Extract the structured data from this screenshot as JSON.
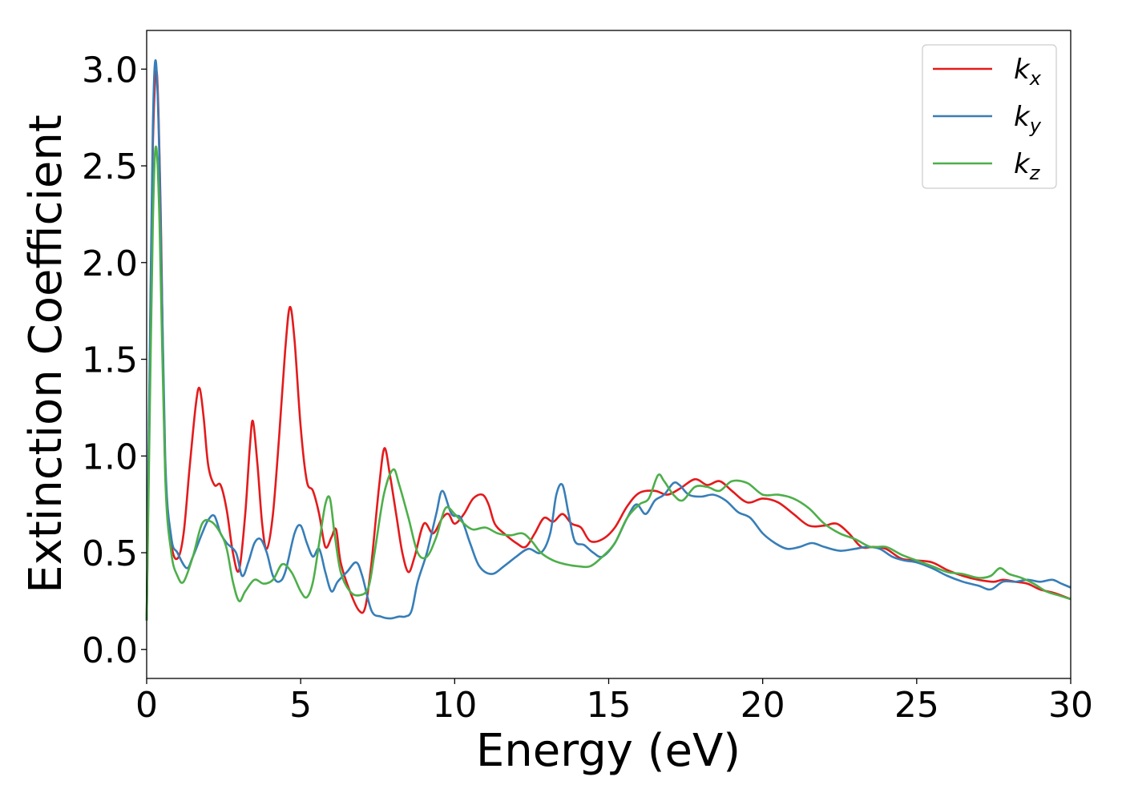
{
  "chart_data": {
    "type": "line",
    "title": "",
    "xlabel": "Energy (eV)",
    "ylabel": "Extinction Coefficient",
    "xlim": [
      0,
      30
    ],
    "ylim": [
      -0.15,
      3.2
    ],
    "xticks": [
      0,
      5,
      10,
      15,
      20,
      25,
      30
    ],
    "xtick_labels": [
      "0",
      "5",
      "10",
      "15",
      "20",
      "25",
      "30"
    ],
    "yticks": [
      0.0,
      0.5,
      1.0,
      1.5,
      2.0,
      2.5,
      3.0
    ],
    "ytick_labels": [
      "0.0",
      "0.5",
      "1.0",
      "1.5",
      "2.0",
      "2.5",
      "3.0"
    ],
    "grid": false,
    "legend_position": "top-right",
    "series": [
      {
        "name": "k_x",
        "label_main": "k",
        "label_sub": "x",
        "color": "#e41a1c",
        "points": [
          [
            0,
            0.15
          ],
          [
            0.1,
            1.4
          ],
          [
            0.2,
            2.6
          ],
          [
            0.33,
            2.98
          ],
          [
            0.45,
            2.3
          ],
          [
            0.6,
            0.95
          ],
          [
            0.8,
            0.55
          ],
          [
            1.0,
            0.47
          ],
          [
            1.2,
            0.6
          ],
          [
            1.4,
            0.95
          ],
          [
            1.6,
            1.27
          ],
          [
            1.72,
            1.35
          ],
          [
            1.85,
            1.2
          ],
          [
            2.0,
            0.95
          ],
          [
            2.2,
            0.85
          ],
          [
            2.4,
            0.85
          ],
          [
            2.6,
            0.72
          ],
          [
            2.8,
            0.5
          ],
          [
            3.0,
            0.41
          ],
          [
            3.2,
            0.7
          ],
          [
            3.35,
            1.05
          ],
          [
            3.45,
            1.18
          ],
          [
            3.6,
            0.95
          ],
          [
            3.75,
            0.65
          ],
          [
            3.9,
            0.52
          ],
          [
            4.1,
            0.7
          ],
          [
            4.3,
            1.1
          ],
          [
            4.5,
            1.55
          ],
          [
            4.65,
            1.77
          ],
          [
            4.8,
            1.6
          ],
          [
            5.0,
            1.15
          ],
          [
            5.2,
            0.87
          ],
          [
            5.4,
            0.82
          ],
          [
            5.6,
            0.7
          ],
          [
            5.8,
            0.53
          ],
          [
            6.0,
            0.58
          ],
          [
            6.15,
            0.62
          ],
          [
            6.3,
            0.45
          ],
          [
            6.6,
            0.3
          ],
          [
            6.9,
            0.2
          ],
          [
            7.1,
            0.22
          ],
          [
            7.3,
            0.45
          ],
          [
            7.55,
            0.85
          ],
          [
            7.72,
            1.04
          ],
          [
            7.9,
            0.9
          ],
          [
            8.1,
            0.7
          ],
          [
            8.3,
            0.5
          ],
          [
            8.5,
            0.4
          ],
          [
            8.7,
            0.48
          ],
          [
            9.0,
            0.65
          ],
          [
            9.3,
            0.6
          ],
          [
            9.6,
            0.68
          ],
          [
            9.8,
            0.7
          ],
          [
            10.0,
            0.65
          ],
          [
            10.3,
            0.7
          ],
          [
            10.6,
            0.78
          ],
          [
            10.9,
            0.8
          ],
          [
            11.1,
            0.75
          ],
          [
            11.3,
            0.65
          ],
          [
            11.6,
            0.6
          ],
          [
            12.0,
            0.55
          ],
          [
            12.3,
            0.53
          ],
          [
            12.6,
            0.6
          ],
          [
            12.9,
            0.68
          ],
          [
            13.2,
            0.66
          ],
          [
            13.5,
            0.7
          ],
          [
            13.8,
            0.65
          ],
          [
            14.1,
            0.63
          ],
          [
            14.4,
            0.56
          ],
          [
            14.8,
            0.57
          ],
          [
            15.2,
            0.63
          ],
          [
            15.6,
            0.74
          ],
          [
            16.0,
            0.81
          ],
          [
            16.5,
            0.82
          ],
          [
            16.9,
            0.8
          ],
          [
            17.3,
            0.83
          ],
          [
            17.8,
            0.88
          ],
          [
            18.2,
            0.85
          ],
          [
            18.6,
            0.87
          ],
          [
            19.0,
            0.82
          ],
          [
            19.5,
            0.76
          ],
          [
            20.0,
            0.78
          ],
          [
            20.5,
            0.76
          ],
          [
            21.0,
            0.7
          ],
          [
            21.5,
            0.64
          ],
          [
            22.0,
            0.64
          ],
          [
            22.4,
            0.65
          ],
          [
            22.8,
            0.6
          ],
          [
            23.2,
            0.53
          ],
          [
            23.6,
            0.53
          ],
          [
            24.0,
            0.52
          ],
          [
            24.5,
            0.47
          ],
          [
            25.0,
            0.46
          ],
          [
            25.5,
            0.45
          ],
          [
            26.0,
            0.41
          ],
          [
            26.5,
            0.38
          ],
          [
            27.0,
            0.36
          ],
          [
            27.5,
            0.35
          ],
          [
            27.8,
            0.36
          ],
          [
            28.2,
            0.35
          ],
          [
            28.6,
            0.34
          ],
          [
            29.0,
            0.31
          ],
          [
            29.5,
            0.29
          ],
          [
            30.0,
            0.26
          ]
        ]
      },
      {
        "name": "k_y",
        "label_main": "k",
        "label_sub": "y",
        "color": "#377eb8",
        "points": [
          [
            0,
            0.15
          ],
          [
            0.1,
            1.5
          ],
          [
            0.2,
            2.7
          ],
          [
            0.3,
            3.04
          ],
          [
            0.42,
            2.5
          ],
          [
            0.6,
            1.0
          ],
          [
            0.8,
            0.58
          ],
          [
            1.0,
            0.5
          ],
          [
            1.3,
            0.42
          ],
          [
            1.5,
            0.48
          ],
          [
            1.8,
            0.6
          ],
          [
            2.0,
            0.67
          ],
          [
            2.2,
            0.69
          ],
          [
            2.4,
            0.6
          ],
          [
            2.6,
            0.55
          ],
          [
            2.9,
            0.5
          ],
          [
            3.1,
            0.38
          ],
          [
            3.3,
            0.45
          ],
          [
            3.5,
            0.55
          ],
          [
            3.7,
            0.57
          ],
          [
            3.9,
            0.5
          ],
          [
            4.1,
            0.38
          ],
          [
            4.3,
            0.35
          ],
          [
            4.5,
            0.4
          ],
          [
            4.8,
            0.6
          ],
          [
            5.0,
            0.64
          ],
          [
            5.2,
            0.55
          ],
          [
            5.4,
            0.48
          ],
          [
            5.6,
            0.52
          ],
          [
            5.8,
            0.4
          ],
          [
            6.0,
            0.3
          ],
          [
            6.2,
            0.35
          ],
          [
            6.5,
            0.4
          ],
          [
            6.8,
            0.45
          ],
          [
            7.0,
            0.38
          ],
          [
            7.3,
            0.2
          ],
          [
            7.6,
            0.17
          ],
          [
            7.9,
            0.16
          ],
          [
            8.2,
            0.17
          ],
          [
            8.4,
            0.17
          ],
          [
            8.6,
            0.2
          ],
          [
            8.8,
            0.35
          ],
          [
            9.1,
            0.5
          ],
          [
            9.4,
            0.7
          ],
          [
            9.6,
            0.82
          ],
          [
            9.9,
            0.7
          ],
          [
            10.2,
            0.68
          ],
          [
            10.5,
            0.55
          ],
          [
            10.8,
            0.43
          ],
          [
            11.2,
            0.39
          ],
          [
            11.6,
            0.43
          ],
          [
            12.0,
            0.48
          ],
          [
            12.4,
            0.52
          ],
          [
            12.8,
            0.5
          ],
          [
            13.1,
            0.6
          ],
          [
            13.3,
            0.8
          ],
          [
            13.5,
            0.85
          ],
          [
            13.7,
            0.7
          ],
          [
            13.9,
            0.56
          ],
          [
            14.2,
            0.54
          ],
          [
            14.5,
            0.5
          ],
          [
            14.8,
            0.48
          ],
          [
            15.2,
            0.55
          ],
          [
            15.6,
            0.68
          ],
          [
            15.9,
            0.75
          ],
          [
            16.2,
            0.7
          ],
          [
            16.5,
            0.77
          ],
          [
            16.8,
            0.8
          ],
          [
            17.1,
            0.86
          ],
          [
            17.3,
            0.85
          ],
          [
            17.6,
            0.8
          ],
          [
            18.0,
            0.79
          ],
          [
            18.4,
            0.8
          ],
          [
            18.8,
            0.77
          ],
          [
            19.2,
            0.71
          ],
          [
            19.6,
            0.68
          ],
          [
            20.0,
            0.6
          ],
          [
            20.4,
            0.55
          ],
          [
            20.8,
            0.52
          ],
          [
            21.2,
            0.53
          ],
          [
            21.6,
            0.55
          ],
          [
            22.0,
            0.53
          ],
          [
            22.5,
            0.51
          ],
          [
            23.0,
            0.52
          ],
          [
            23.4,
            0.53
          ],
          [
            23.8,
            0.52
          ],
          [
            24.2,
            0.48
          ],
          [
            24.6,
            0.46
          ],
          [
            25.0,
            0.45
          ],
          [
            25.5,
            0.42
          ],
          [
            26.0,
            0.38
          ],
          [
            26.5,
            0.35
          ],
          [
            27.0,
            0.33
          ],
          [
            27.4,
            0.31
          ],
          [
            27.8,
            0.35
          ],
          [
            28.2,
            0.35
          ],
          [
            28.6,
            0.36
          ],
          [
            29.0,
            0.35
          ],
          [
            29.4,
            0.36
          ],
          [
            29.7,
            0.34
          ],
          [
            30.0,
            0.32
          ]
        ]
      },
      {
        "name": "k_z",
        "label_main": "k",
        "label_sub": "z",
        "color": "#4daf4a",
        "points": [
          [
            0,
            0.15
          ],
          [
            0.1,
            1.2
          ],
          [
            0.2,
            2.2
          ],
          [
            0.3,
            2.6
          ],
          [
            0.42,
            2.2
          ],
          [
            0.6,
            0.9
          ],
          [
            0.8,
            0.5
          ],
          [
            1.0,
            0.38
          ],
          [
            1.2,
            0.35
          ],
          [
            1.5,
            0.48
          ],
          [
            1.8,
            0.65
          ],
          [
            2.1,
            0.66
          ],
          [
            2.4,
            0.6
          ],
          [
            2.6,
            0.52
          ],
          [
            2.8,
            0.35
          ],
          [
            3.0,
            0.25
          ],
          [
            3.2,
            0.3
          ],
          [
            3.5,
            0.36
          ],
          [
            3.8,
            0.34
          ],
          [
            4.1,
            0.36
          ],
          [
            4.4,
            0.44
          ],
          [
            4.7,
            0.4
          ],
          [
            5.0,
            0.3
          ],
          [
            5.2,
            0.27
          ],
          [
            5.4,
            0.35
          ],
          [
            5.6,
            0.55
          ],
          [
            5.8,
            0.75
          ],
          [
            5.95,
            0.78
          ],
          [
            6.1,
            0.6
          ],
          [
            6.3,
            0.4
          ],
          [
            6.6,
            0.3
          ],
          [
            6.9,
            0.28
          ],
          [
            7.2,
            0.32
          ],
          [
            7.4,
            0.5
          ],
          [
            7.7,
            0.8
          ],
          [
            8.0,
            0.93
          ],
          [
            8.2,
            0.85
          ],
          [
            8.5,
            0.68
          ],
          [
            8.8,
            0.5
          ],
          [
            9.1,
            0.48
          ],
          [
            9.4,
            0.58
          ],
          [
            9.7,
            0.73
          ],
          [
            10.0,
            0.7
          ],
          [
            10.3,
            0.65
          ],
          [
            10.6,
            0.62
          ],
          [
            11.0,
            0.63
          ],
          [
            11.4,
            0.6
          ],
          [
            11.8,
            0.59
          ],
          [
            12.2,
            0.6
          ],
          [
            12.5,
            0.56
          ],
          [
            12.8,
            0.5
          ],
          [
            13.2,
            0.46
          ],
          [
            13.6,
            0.44
          ],
          [
            14.0,
            0.43
          ],
          [
            14.4,
            0.43
          ],
          [
            14.8,
            0.48
          ],
          [
            15.2,
            0.55
          ],
          [
            15.6,
            0.68
          ],
          [
            16.0,
            0.75
          ],
          [
            16.3,
            0.78
          ],
          [
            16.6,
            0.9
          ],
          [
            16.8,
            0.87
          ],
          [
            17.1,
            0.8
          ],
          [
            17.4,
            0.77
          ],
          [
            17.8,
            0.84
          ],
          [
            18.2,
            0.84
          ],
          [
            18.6,
            0.82
          ],
          [
            19.0,
            0.87
          ],
          [
            19.5,
            0.86
          ],
          [
            20.0,
            0.8
          ],
          [
            20.5,
            0.8
          ],
          [
            21.0,
            0.78
          ],
          [
            21.5,
            0.73
          ],
          [
            22.0,
            0.65
          ],
          [
            22.5,
            0.6
          ],
          [
            23.0,
            0.57
          ],
          [
            23.5,
            0.53
          ],
          [
            24.0,
            0.53
          ],
          [
            24.5,
            0.49
          ],
          [
            25.0,
            0.46
          ],
          [
            25.5,
            0.43
          ],
          [
            26.0,
            0.4
          ],
          [
            26.5,
            0.39
          ],
          [
            27.0,
            0.37
          ],
          [
            27.4,
            0.38
          ],
          [
            27.7,
            0.42
          ],
          [
            28.0,
            0.39
          ],
          [
            28.4,
            0.37
          ],
          [
            28.8,
            0.34
          ],
          [
            29.2,
            0.3
          ],
          [
            29.6,
            0.28
          ],
          [
            30.0,
            0.26
          ]
        ]
      }
    ]
  }
}
